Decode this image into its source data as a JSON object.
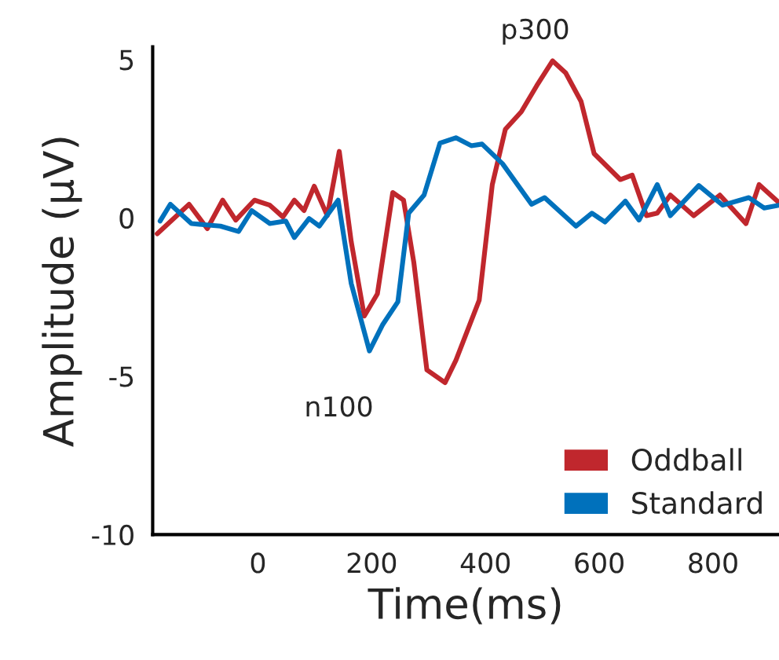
{
  "chart_data": {
    "type": "line",
    "xlabel": "Time(ms)",
    "ylabel": "Amplitude (µV)",
    "xlim": [
      -185,
      916
    ],
    "ylim": [
      -10,
      5.4
    ],
    "xticks": [
      0,
      200,
      400,
      600,
      800
    ],
    "yticks": [
      -10,
      -5,
      0,
      5
    ],
    "legend": "bottom right",
    "grid": false,
    "annotations": [
      {
        "text": "p300",
        "x": 518,
        "y": 4.96
      },
      {
        "text": "n100",
        "x": 196,
        "y": -4.2
      }
    ],
    "series": [
      {
        "name": "Oddball",
        "color": "#c0272d",
        "x": [
          -177,
          -121,
          -89,
          -62,
          -39,
          -6,
          21,
          44,
          64,
          81,
          99,
          122,
          143,
          164,
          187,
          210,
          237,
          256,
          274,
          297,
          329,
          348,
          389,
          412,
          435,
          463,
          490,
          518,
          541,
          568,
          591,
          637,
          658,
          683,
          702,
          725,
          766,
          812,
          858,
          881,
          916
        ],
        "values": [
          -0.5,
          0.43,
          -0.34,
          0.56,
          -0.07,
          0.56,
          0.4,
          0.03,
          0.56,
          0.23,
          1.0,
          0.07,
          2.1,
          -0.75,
          -3.1,
          -2.4,
          0.8,
          0.56,
          -1.4,
          -4.8,
          -5.2,
          -4.5,
          -2.6,
          1.05,
          2.8,
          3.35,
          4.17,
          4.96,
          4.58,
          3.68,
          2.03,
          1.21,
          1.35,
          0.07,
          0.15,
          0.72,
          0.07,
          0.72,
          -0.18,
          1.05,
          0.48
        ]
      },
      {
        "name": "Standard",
        "color": "#0071bc",
        "x": [
          -172,
          -154,
          -117,
          -66,
          -34,
          -11,
          21,
          49,
          64,
          90,
          108,
          141,
          164,
          196,
          219,
          246,
          265,
          292,
          320,
          348,
          375,
          394,
          430,
          481,
          504,
          559,
          587,
          610,
          646,
          670,
          702,
          725,
          775,
          817,
          863,
          890,
          916
        ],
        "values": [
          -0.1,
          0.43,
          -0.18,
          -0.26,
          -0.43,
          0.23,
          -0.18,
          -0.1,
          -0.62,
          -0.02,
          -0.26,
          0.56,
          -2.07,
          -4.2,
          -3.38,
          -2.65,
          0.15,
          0.72,
          2.36,
          2.53,
          2.28,
          2.33,
          1.71,
          0.43,
          0.64,
          -0.26,
          0.15,
          -0.13,
          0.53,
          -0.07,
          1.05,
          0.07,
          1.02,
          0.4,
          0.64,
          0.31,
          0.4
        ]
      }
    ]
  }
}
